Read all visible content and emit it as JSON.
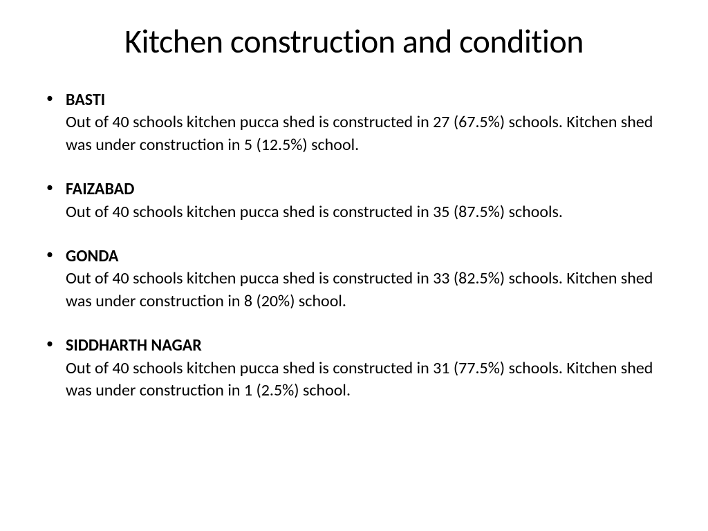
{
  "title": "Kitchen construction and condition",
  "items": [
    {
      "heading": "BASTI",
      "body": "Out of 40 schools kitchen pucca shed is constructed in 27 (67.5%) schools. Kitchen shed was under construction in 5 (12.5%) school."
    },
    {
      "heading": "FAIZABAD",
      "body": "Out of 40 schools kitchen pucca shed is constructed in 35 (87.5%) schools."
    },
    {
      "heading": "GONDA",
      "body": "Out of 40 schools kitchen pucca shed is constructed in 33 (82.5%) schools. Kitchen shed was under construction in 8 (20%) school."
    },
    {
      "heading": "SIDDHARTH NAGAR",
      "body": "Out of 40 schools kitchen pucca shed is constructed in 31 (77.5%) schools. Kitchen shed was under construction in 1 (2.5%) school."
    }
  ],
  "style": {
    "background_color": "#ffffff",
    "text_color": "#000000",
    "title_fontsize": 48,
    "body_fontsize": 24,
    "font_family": "Calibri"
  }
}
